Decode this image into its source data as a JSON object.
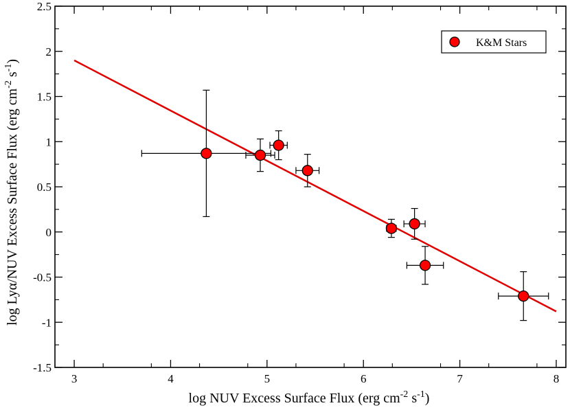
{
  "chart_data": {
    "type": "scatter",
    "title": "",
    "xlabel": {
      "main": "log NUV Excess Surface Flux (erg cm",
      "exp1": "-2",
      "mid": "  s",
      "exp2": "-1",
      "end": ")"
    },
    "ylabel": {
      "main": "log Lyα/NUV Excess Surface Flux (erg cm",
      "exp1": "-2",
      "mid": " s",
      "exp2": "-1",
      "end": ")"
    },
    "xlim": [
      2.8,
      8.1
    ],
    "ylim": [
      -1.5,
      2.5
    ],
    "x_ticks": [
      3,
      4,
      5,
      6,
      7,
      8
    ],
    "x_tick_labels": [
      "3",
      "4",
      "5",
      "6",
      "7",
      "8"
    ],
    "y_ticks": [
      -1.5,
      -1,
      -0.5,
      0,
      0.5,
      1,
      1.5,
      2,
      2.5
    ],
    "y_tick_labels": [
      "-1.5",
      "-1",
      "-0.5",
      "0",
      "0.5",
      "1",
      "1.5",
      "2",
      "2.5"
    ],
    "grid": false,
    "legend": {
      "position": "top-right",
      "entries": [
        "K&M Stars"
      ]
    },
    "series": [
      {
        "name": "K&M Stars",
        "marker_color": "#ff0000",
        "points": [
          {
            "x": 4.37,
            "y": 0.87,
            "xerr": 0.67,
            "yerr": 0.7
          },
          {
            "x": 4.93,
            "y": 0.85,
            "xerr": 0.15,
            "yerr": 0.18
          },
          {
            "x": 5.12,
            "y": 0.96,
            "xerr": 0.09,
            "yerr": 0.16
          },
          {
            "x": 5.42,
            "y": 0.68,
            "xerr": 0.12,
            "yerr": 0.18
          },
          {
            "x": 6.29,
            "y": 0.04,
            "xerr": 0.05,
            "yerr": 0.1
          },
          {
            "x": 6.53,
            "y": 0.09,
            "xerr": 0.11,
            "yerr": 0.17
          },
          {
            "x": 6.64,
            "y": -0.37,
            "xerr": 0.19,
            "yerr": 0.21
          },
          {
            "x": 7.66,
            "y": -0.71,
            "xerr": 0.26,
            "yerr": 0.27
          }
        ]
      }
    ],
    "fit_line": {
      "color": "#e00000",
      "x": [
        3.0,
        8.0
      ],
      "y": [
        1.9,
        -0.88
      ]
    }
  }
}
